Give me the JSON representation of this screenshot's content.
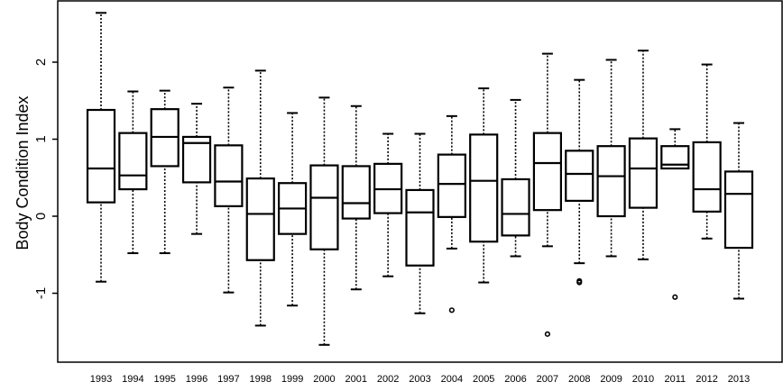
{
  "chart_data": {
    "type": "boxplot",
    "title": "",
    "xlabel": "",
    "ylabel": "Body Condition Index",
    "ylim": [
      -1.85,
      2.8
    ],
    "y_ticks": [
      -1,
      0,
      1,
      2
    ],
    "y_tick_labels": [
      "-1",
      "0",
      "1",
      "2"
    ],
    "grid": false,
    "legend": "none",
    "colors": {
      "box_stroke": "#000000",
      "box_fill": "#ffffff",
      "whisker": "#000000",
      "outlier": "#000000"
    },
    "categories": [
      "1993",
      "1994",
      "1995",
      "1996",
      "1997",
      "1998",
      "1999",
      "2000",
      "2001",
      "2002",
      "2003",
      "2004",
      "2005",
      "2006",
      "2007",
      "2008",
      "2009",
      "2010",
      "2011",
      "2012",
      "2013"
    ],
    "boxes": [
      {
        "year": "1993",
        "whisker_low": -0.85,
        "q1": 0.18,
        "median": 0.62,
        "q3": 1.38,
        "whisker_high": 2.64,
        "outliers": []
      },
      {
        "year": "1994",
        "whisker_low": -0.48,
        "q1": 0.35,
        "median": 0.53,
        "q3": 1.08,
        "whisker_high": 1.62,
        "outliers": []
      },
      {
        "year": "1995",
        "whisker_low": -0.48,
        "q1": 0.65,
        "median": 1.03,
        "q3": 1.39,
        "whisker_high": 1.63,
        "outliers": []
      },
      {
        "year": "1996",
        "whisker_low": -0.23,
        "q1": 0.44,
        "median": 0.95,
        "q3": 1.03,
        "whisker_high": 1.46,
        "outliers": []
      },
      {
        "year": "1997",
        "whisker_low": -0.99,
        "q1": 0.13,
        "median": 0.45,
        "q3": 0.92,
        "whisker_high": 1.67,
        "outliers": []
      },
      {
        "year": "1998",
        "whisker_low": -1.42,
        "q1": -0.57,
        "median": 0.03,
        "q3": 0.49,
        "whisker_high": 1.89,
        "outliers": []
      },
      {
        "year": "1999",
        "whisker_low": -1.16,
        "q1": -0.23,
        "median": 0.1,
        "q3": 0.43,
        "whisker_high": 1.34,
        "outliers": []
      },
      {
        "year": "2000",
        "whisker_low": -1.67,
        "q1": -0.43,
        "median": 0.24,
        "q3": 0.66,
        "whisker_high": 1.54,
        "outliers": []
      },
      {
        "year": "2001",
        "whisker_low": -0.95,
        "q1": -0.03,
        "median": 0.17,
        "q3": 0.65,
        "whisker_high": 1.43,
        "outliers": []
      },
      {
        "year": "2002",
        "whisker_low": -0.78,
        "q1": 0.04,
        "median": 0.35,
        "q3": 0.68,
        "whisker_high": 1.07,
        "outliers": []
      },
      {
        "year": "2003",
        "whisker_low": -1.26,
        "q1": -0.64,
        "median": 0.05,
        "q3": 0.34,
        "whisker_high": 1.07,
        "outliers": []
      },
      {
        "year": "2004",
        "whisker_low": -0.42,
        "q1": -0.01,
        "median": 0.42,
        "q3": 0.8,
        "whisker_high": 1.3,
        "outliers": [
          -1.22
        ]
      },
      {
        "year": "2005",
        "whisker_low": -0.86,
        "q1": -0.33,
        "median": 0.46,
        "q3": 1.06,
        "whisker_high": 1.66,
        "outliers": []
      },
      {
        "year": "2006",
        "whisker_low": -0.52,
        "q1": -0.25,
        "median": 0.03,
        "q3": 0.48,
        "whisker_high": 1.51,
        "outliers": []
      },
      {
        "year": "2007",
        "whisker_low": -0.39,
        "q1": 0.08,
        "median": 0.69,
        "q3": 1.08,
        "whisker_high": 2.11,
        "outliers": [
          -1.53
        ]
      },
      {
        "year": "2008",
        "whisker_low": -0.61,
        "q1": 0.2,
        "median": 0.55,
        "q3": 0.85,
        "whisker_high": 1.77,
        "outliers": [
          -0.84,
          -0.86
        ]
      },
      {
        "year": "2009",
        "whisker_low": -0.52,
        "q1": 0.0,
        "median": 0.52,
        "q3": 0.91,
        "whisker_high": 2.03,
        "outliers": []
      },
      {
        "year": "2010",
        "whisker_low": -0.56,
        "q1": 0.11,
        "median": 0.62,
        "q3": 1.01,
        "whisker_high": 2.15,
        "outliers": []
      },
      {
        "year": "2011",
        "whisker_low": 0.62,
        "q1": 0.62,
        "median": 0.67,
        "q3": 0.91,
        "whisker_high": 1.13,
        "outliers": [
          -1.05
        ]
      },
      {
        "year": "2012",
        "whisker_low": -0.29,
        "q1": 0.06,
        "median": 0.35,
        "q3": 0.96,
        "whisker_high": 1.97,
        "outliers": []
      },
      {
        "year": "2013",
        "whisker_low": -1.07,
        "q1": -0.41,
        "median": 0.29,
        "q3": 0.58,
        "whisker_high": 1.21,
        "outliers": []
      }
    ]
  }
}
